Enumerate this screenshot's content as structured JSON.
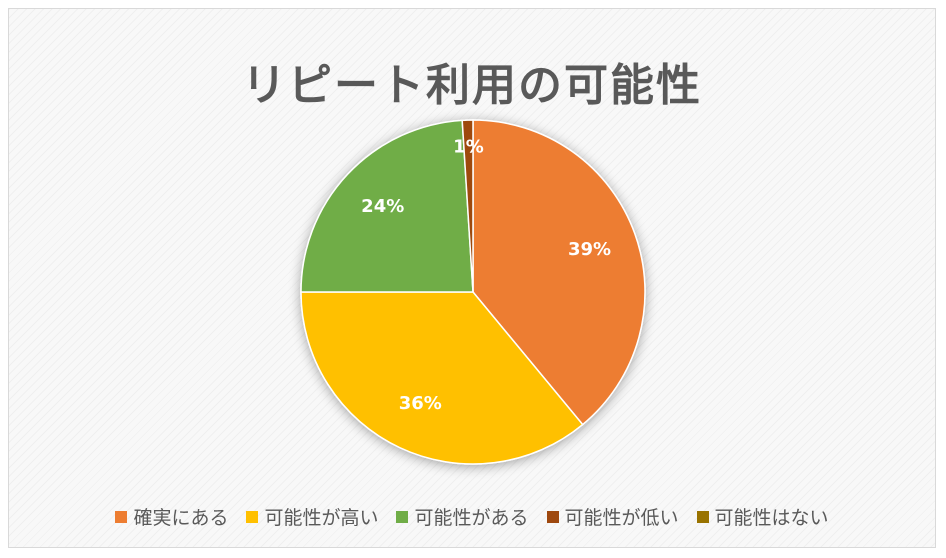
{
  "chart_data": {
    "type": "pie",
    "title": "リピート利用の可能性",
    "categories": [
      "確実にある",
      "可能性が高い",
      "可能性がある",
      "可能性が低い",
      "可能性はない"
    ],
    "values": [
      39,
      36,
      24,
      1,
      0
    ],
    "data_labels": [
      "39%",
      "36%",
      "24%",
      "1%",
      ""
    ],
    "colors": [
      "#ED7D31",
      "#FFC000",
      "#70AD47",
      "#9E480E",
      "#997300"
    ],
    "legend_position": "bottom"
  }
}
